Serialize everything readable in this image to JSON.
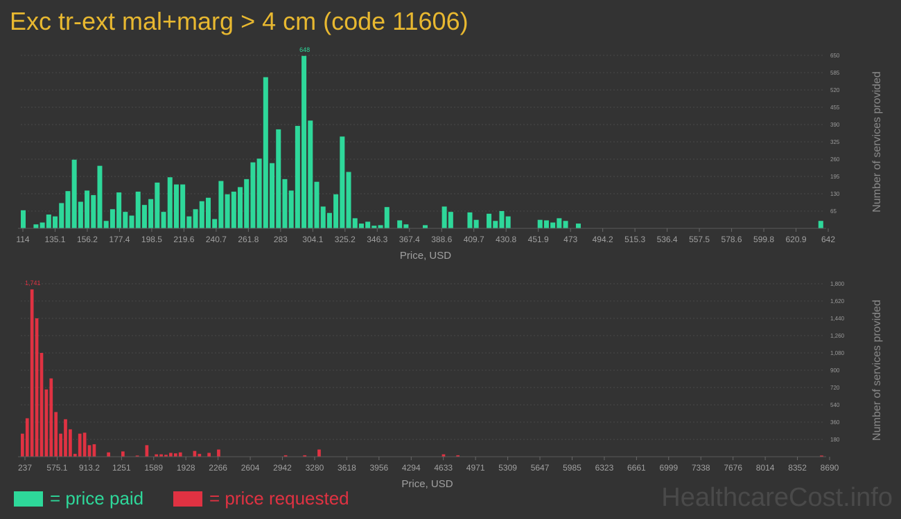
{
  "title": "Exc tr-ext mal+marg > 4 cm (code 11606)",
  "colors": {
    "paid": "#2ed89a",
    "requested": "#e03242",
    "title": "#e8b830"
  },
  "legend": {
    "paid_label": "= price paid",
    "requested_label": "= price requested"
  },
  "brand": "HealthcareCost.info",
  "chart_data": [
    {
      "type": "bar",
      "series": "price paid",
      "xlabel": "Price, USD",
      "ylabel": "Number of services provided",
      "x_ticks": [
        "114",
        "135.1",
        "156.2",
        "177.4",
        "198.5",
        "219.6",
        "240.7",
        "261.8",
        "283",
        "304.1",
        "325.2",
        "346.3",
        "367.4",
        "388.6",
        "409.7",
        "430.8",
        "451.9",
        "473",
        "494.2",
        "515.3",
        "536.4",
        "557.5",
        "578.6",
        "599.8",
        "620.9",
        "642"
      ],
      "y_ticks": [
        "65",
        "130",
        "195",
        "260",
        "325",
        "390",
        "455",
        "520",
        "585",
        "650"
      ],
      "ylim": [
        0,
        650
      ],
      "xlim": [
        114,
        642
      ],
      "peak_label": "648",
      "bin_start": 114,
      "bin_width": 5.28,
      "values": [
        68,
        0,
        15,
        22,
        52,
        45,
        95,
        140,
        258,
        100,
        142,
        125,
        235,
        28,
        72,
        135,
        62,
        48,
        138,
        88,
        110,
        172,
        62,
        192,
        165,
        165,
        45,
        72,
        102,
        115,
        35,
        178,
        128,
        138,
        155,
        185,
        248,
        262,
        568,
        245,
        372,
        185,
        142,
        385,
        648,
        405,
        175,
        82,
        58,
        128,
        345,
        212,
        38,
        18,
        25,
        10,
        12,
        80,
        0,
        30,
        15,
        0,
        0,
        12,
        0,
        0,
        82,
        62,
        0,
        0,
        60,
        32,
        0,
        55,
        28,
        65,
        45,
        0,
        0,
        0,
        0,
        32,
        30,
        22,
        38,
        28,
        0,
        18,
        0,
        0,
        0,
        0,
        0,
        0,
        0,
        0,
        0,
        0,
        0,
        0,
        0,
        0,
        0,
        0,
        0,
        0,
        0,
        0,
        0,
        0,
        0,
        0,
        0,
        0,
        0,
        0,
        0,
        0,
        0,
        0,
        0,
        0,
        0,
        0,
        0,
        28
      ]
    },
    {
      "type": "bar",
      "series": "price requested",
      "xlabel": "Price, USD",
      "ylabel": "Number of services provided",
      "x_ticks": [
        "237",
        "575.1",
        "913.2",
        "1251",
        "1589",
        "1928",
        "2266",
        "2604",
        "2942",
        "3280",
        "3618",
        "3956",
        "4294",
        "4633",
        "4971",
        "5309",
        "5647",
        "5985",
        "6323",
        "6661",
        "6999",
        "7338",
        "7676",
        "8014",
        "8352",
        "8690"
      ],
      "y_ticks": [
        "180",
        "360",
        "540",
        "720",
        "900",
        "1,080",
        "1,260",
        "1,440",
        "1,620",
        "1,800"
      ],
      "ylim": [
        0,
        1800
      ],
      "xlim": [
        237,
        8690
      ],
      "peak_label": "1,741",
      "bin_start": 237,
      "bin_width": 84.53,
      "values": [
        240,
        400,
        1741,
        1440,
        1080,
        700,
        815,
        465,
        240,
        390,
        285,
        30,
        240,
        250,
        120,
        130,
        0,
        0,
        45,
        0,
        0,
        55,
        0,
        0,
        12,
        0,
        120,
        0,
        25,
        25,
        20,
        40,
        35,
        45,
        0,
        0,
        60,
        30,
        0,
        40,
        0,
        75,
        0,
        0,
        0,
        0,
        0,
        0,
        0,
        0,
        0,
        0,
        0,
        0,
        0,
        15,
        0,
        0,
        0,
        15,
        0,
        0,
        75,
        0,
        0,
        0,
        0,
        0,
        0,
        0,
        0,
        0,
        0,
        0,
        0,
        0,
        0,
        0,
        0,
        0,
        0,
        0,
        0,
        0,
        0,
        0,
        0,
        0,
        25,
        0,
        0,
        15,
        0,
        0,
        0,
        0,
        0,
        0,
        0,
        0,
        0,
        0,
        0,
        0,
        0,
        0,
        0,
        0,
        0,
        0,
        0,
        0,
        0,
        0,
        0,
        0,
        0,
        0,
        0,
        0,
        0,
        0,
        0,
        0,
        0,
        0,
        0,
        0,
        0,
        0,
        0,
        0,
        0,
        0,
        0,
        0,
        0,
        0,
        0,
        0,
        0,
        0,
        0,
        0,
        0,
        0,
        0,
        0,
        0,
        0,
        0,
        0,
        0,
        0,
        0,
        0,
        0,
        0,
        0,
        0,
        0,
        0,
        0,
        0,
        0,
        0,
        0,
        12
      ]
    }
  ]
}
